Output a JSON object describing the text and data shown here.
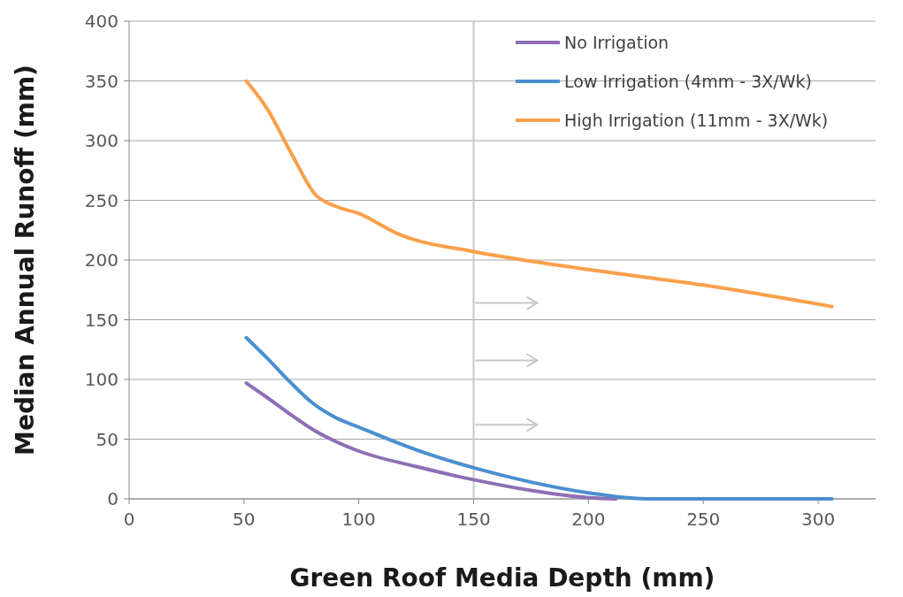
{
  "chart_data": {
    "type": "line",
    "xlabel": "Green Roof Media Depth (mm)",
    "ylabel": "Median Annual Runoff (mm)",
    "xlim": [
      0,
      325
    ],
    "xticks": [
      0,
      50,
      100,
      150,
      200,
      250,
      300
    ],
    "ylim": [
      0,
      400
    ],
    "yticks": [
      0,
      50,
      100,
      150,
      200,
      250,
      300,
      350,
      400
    ],
    "grid": "y",
    "legend": "top right",
    "marker": "none",
    "line_style": "solid",
    "ref_lines": [
      {
        "axis": "x",
        "value": 150,
        "color": "#c8c8c8"
      }
    ],
    "series": [
      {
        "name": "No Irrigation",
        "color": "#8e6fb5",
        "x": [
          51,
          60,
          70,
          80,
          90,
          100,
          125,
          150,
          175,
          200,
          212
        ],
        "values": [
          97,
          85,
          71,
          58,
          48,
          40,
          27,
          16,
          7,
          1,
          0
        ]
      },
      {
        "name": "Low Irrigation (4mm - 3X/Wk)",
        "color": "#4a8fd0",
        "x": [
          51,
          60,
          70,
          80,
          90,
          100,
          125,
          150,
          175,
          200,
          225,
          250,
          306
        ],
        "values": [
          135,
          118,
          98,
          80,
          68,
          60,
          41,
          26,
          14,
          5,
          0,
          0,
          0
        ]
      },
      {
        "name": "High Irrigation (11mm - 3X/Wk)",
        "color": "#f9a04a",
        "x": [
          51,
          60,
          71,
          81,
          90,
          100,
          117,
          150,
          175,
          200,
          250,
          306
        ],
        "values": [
          350,
          327,
          288,
          255,
          245,
          239,
          222,
          207,
          199,
          192,
          179,
          161
        ]
      }
    ]
  }
}
